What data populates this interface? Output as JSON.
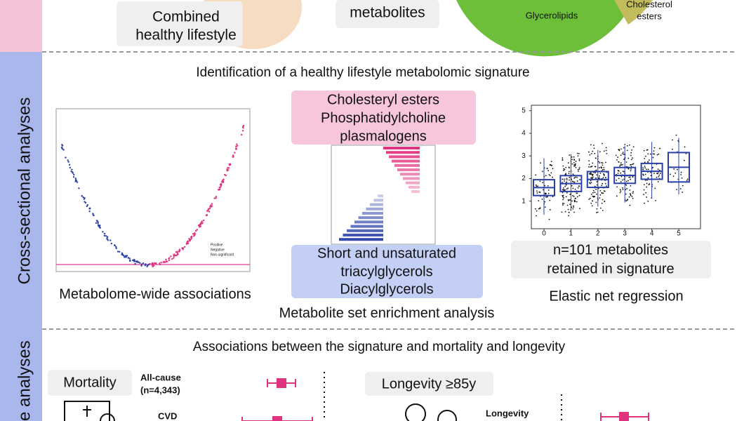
{
  "sidebar": {
    "cross_sectional": "Cross-sectional analyses",
    "prospective": "e analyses"
  },
  "top": {
    "lifestyle": [
      "Combined",
      "healthy lifestyle"
    ],
    "metabolites": "metabolites",
    "pie": {
      "glycerolipids": "Glycerolipids",
      "cholesterol": [
        "Cholesterol",
        "esters"
      ]
    }
  },
  "cross": {
    "title": "Identification of a healthy lifestyle metabolomic signature",
    "mwas": {
      "caption": "Metabolome-wide associations",
      "legend": [
        "Positive",
        "Negative",
        "Non-significant"
      ]
    },
    "msea": {
      "up": [
        "Cholesteryl esters",
        "Phosphatidylcholine",
        "plasmalogens"
      ],
      "down": [
        "Short and unsaturated",
        "triacylglycerols",
        "Diacylglycerols"
      ],
      "caption": "Metabolite set enrichment analysis"
    },
    "enet": {
      "yticks": [
        1,
        2,
        3,
        4,
        5
      ],
      "xticks": [
        0,
        1,
        2,
        3,
        4,
        5
      ],
      "box": [
        "n=101 metabolites",
        "retained in signature"
      ],
      "caption": "Elastic net regression"
    }
  },
  "prospective": {
    "title": "Associations between the signature and mortality and longevity",
    "mortality": {
      "label": "Mortality",
      "allcause": [
        "All-cause",
        "(n=4,343)"
      ],
      "cvd": "CVD"
    },
    "longevity": {
      "label": "Longevity ≥85y",
      "outcome": "Longevity"
    }
  }
}
